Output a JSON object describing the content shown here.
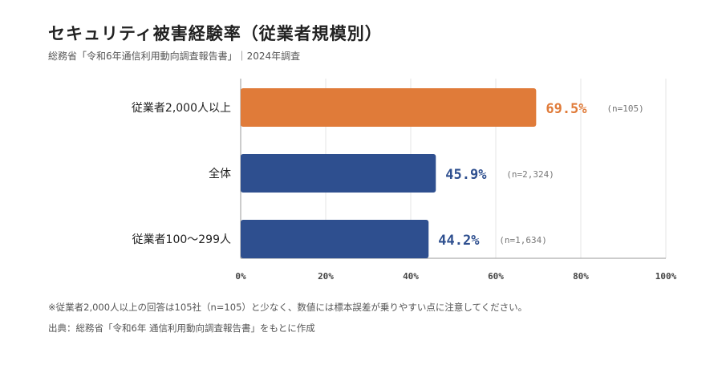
{
  "title": "セキュリティ被害経験率（従業者規模別）",
  "subtitle": "総務省「令和6年通信利用動向調査報告書」｜2024年調査",
  "note": "※従業者2,000人以上の回答は105社（n=105）と少なく、数値には標本誤差が乗りやすい点に注意してください。",
  "source": "出典：総務省「令和6年 通信利用動向調査報告書」をもとに作成",
  "colors": {
    "highlight": "#E07B39",
    "base": "#2E4F8F",
    "grid": "#e6e6e6",
    "axis": "#999999"
  },
  "chart_data": {
    "type": "bar",
    "orientation": "horizontal",
    "categories": [
      "従業者2,000人以上",
      "全体",
      "従業者100～299人"
    ],
    "values": [
      69.5,
      45.9,
      44.2
    ],
    "value_labels": [
      "69.5%",
      "45.9%",
      "44.2%"
    ],
    "n_labels": [
      "(n=105)",
      "(n=2,324)",
      "(n=1,634)"
    ],
    "highlight_index": 0,
    "xlim": [
      0,
      100
    ],
    "xticks": [
      0,
      20,
      40,
      60,
      80,
      100
    ],
    "xtick_labels": [
      "0%",
      "20%",
      "40%",
      "60%",
      "80%",
      "100%"
    ],
    "grid": true
  }
}
